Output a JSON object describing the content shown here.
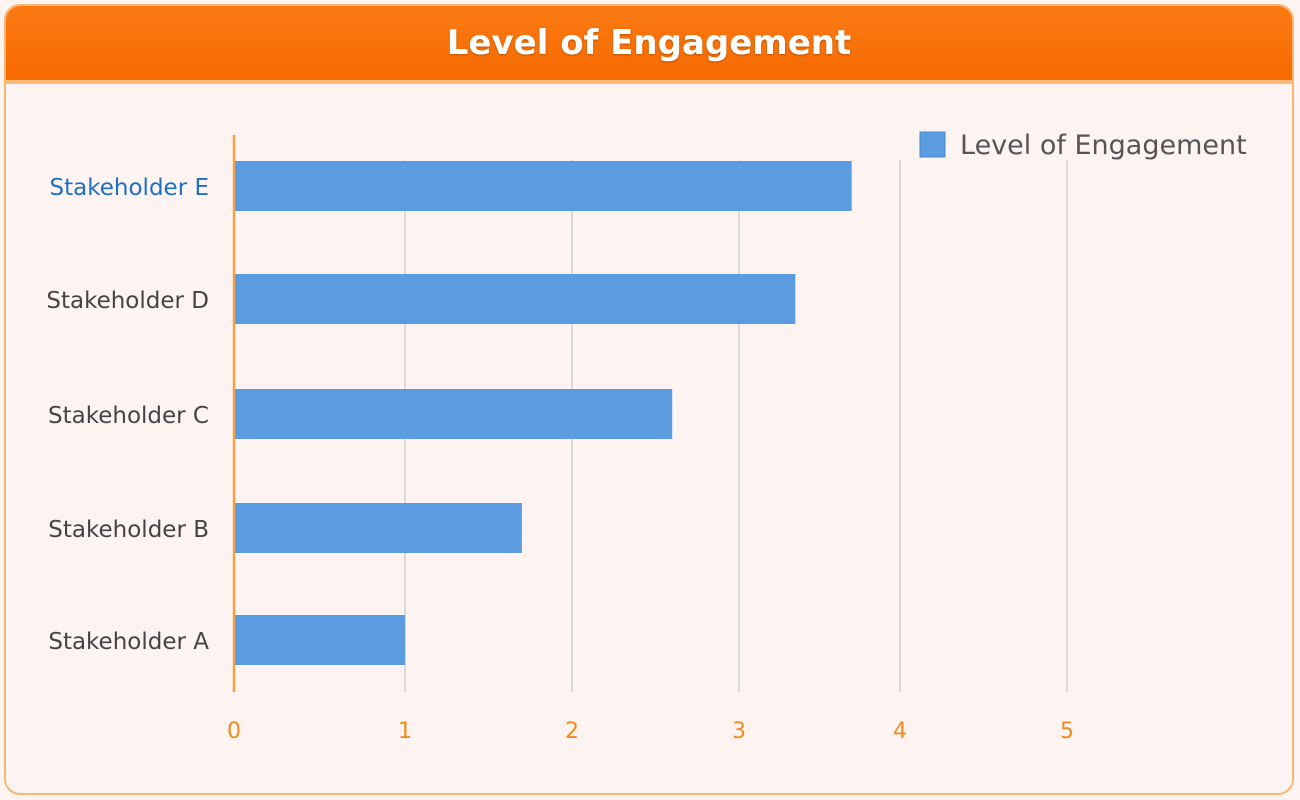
{
  "header": {
    "title": "Level of Engagement"
  },
  "chart_data": {
    "type": "bar",
    "orientation": "horizontal",
    "title": "Level of Engagement",
    "categories": [
      "Stakeholder A",
      "Stakeholder B",
      "Stakeholder C",
      "Stakeholder D",
      "Stakeholder E"
    ],
    "series": [
      {
        "name": "Level of Engagement",
        "values": [
          1.0,
          1.7,
          2.6,
          3.35,
          3.7
        ],
        "color": "#5b9bdf"
      }
    ],
    "x_ticks": [
      0,
      1,
      2,
      3,
      4,
      5
    ],
    "xlim": [
      0,
      5
    ],
    "grid": true,
    "legend_position": "top-right",
    "highlight_category": "Stakeholder E",
    "colors": {
      "axis": "#f7a144",
      "tick_label": "#f18a1e",
      "category_label": "#444444",
      "highlight_label": "#1f6fc4",
      "grid": "#cfcfcf"
    }
  }
}
